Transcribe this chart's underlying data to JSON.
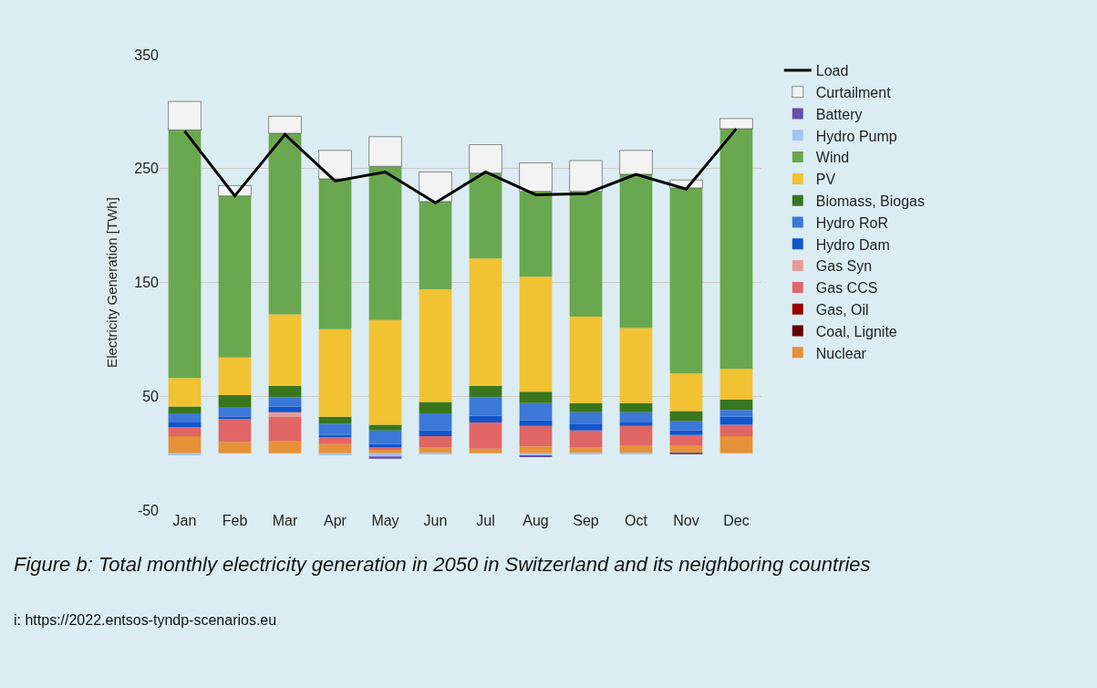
{
  "chart_data": {
    "type": "bar",
    "stacked": true,
    "ylabel": "Electricity Generation [TWh]",
    "categories": [
      "Jan",
      "Feb",
      "Mar",
      "Apr",
      "May",
      "Jun",
      "Jul",
      "Aug",
      "Sep",
      "Oct",
      "Nov",
      "Dec"
    ],
    "series": [
      {
        "name": "Nuclear",
        "color": "#e69138",
        "values": [
          15,
          10,
          11,
          8,
          3,
          5,
          4,
          6,
          5,
          7,
          7,
          15
        ]
      },
      {
        "name": "Coal, Lignite",
        "color": "#660000",
        "values": [
          0,
          0,
          0,
          0,
          0,
          0,
          0,
          0,
          0,
          0,
          0,
          0
        ]
      },
      {
        "name": "Gas, Oil",
        "color": "#990000",
        "values": [
          0,
          0,
          0,
          0,
          0,
          0,
          0,
          0,
          0,
          0,
          0,
          0
        ]
      },
      {
        "name": "Gas CCS",
        "color": "#e06666",
        "values": [
          8,
          20,
          21,
          6,
          2,
          10,
          23,
          18,
          15,
          17,
          9,
          10
        ]
      },
      {
        "name": "Gas Syn",
        "color": "#ea9999",
        "values": [
          0,
          0,
          4,
          0,
          0,
          0,
          0,
          0,
          0,
          0,
          0,
          0
        ]
      },
      {
        "name": "Hydro Dam",
        "color": "#1155cc",
        "values": [
          4,
          2,
          5,
          2,
          3,
          5,
          6,
          5,
          6,
          3,
          4,
          7
        ]
      },
      {
        "name": "Hydro RoR",
        "color": "#3c78d8",
        "values": [
          8,
          8,
          8,
          10,
          12,
          15,
          16,
          15,
          10,
          9,
          8,
          6
        ]
      },
      {
        "name": "Biomass, Biogas",
        "color": "#38761d",
        "values": [
          6,
          11,
          10,
          6,
          5,
          10,
          10,
          10,
          8,
          8,
          9,
          9
        ]
      },
      {
        "name": "PV",
        "color": "#f1c232",
        "values": [
          25,
          33,
          63,
          77,
          92,
          99,
          112,
          101,
          76,
          66,
          33,
          27
        ]
      },
      {
        "name": "Wind",
        "color": "#6aa84f",
        "values": [
          218,
          142,
          159,
          132,
          135,
          77,
          75,
          75,
          110,
          135,
          163,
          211
        ]
      },
      {
        "name": "Hydro Pump",
        "color": "#a4c2f4",
        "values": [
          -2,
          0,
          0,
          -2,
          -3,
          -1,
          0,
          -2,
          -1,
          -1,
          0,
          0
        ]
      },
      {
        "name": "Battery",
        "color": "#674ea7",
        "values": [
          0,
          0,
          0,
          0,
          -2,
          0,
          0,
          -1,
          0,
          0,
          -1,
          0
        ]
      },
      {
        "name": "Curtailment",
        "color": "#f3f3f3",
        "values": [
          25,
          9,
          15,
          25,
          26,
          26,
          25,
          25,
          27,
          21,
          7,
          9
        ]
      },
      {
        "name": "Load",
        "type": "line",
        "color": "#000000",
        "values": [
          283,
          226,
          280,
          239,
          247,
          220,
          247,
          227,
          228,
          245,
          232,
          285
        ]
      }
    ],
    "ylim": [
      -50,
      350
    ],
    "yticks": [
      -50,
      50,
      150,
      250,
      350
    ],
    "grid": "y",
    "legend": "right",
    "annotations": [
      "Figure b: Total monthly electricity generation in 2050 in Switzerland and its neighboring countries",
      "i: https://2022.entsos-tyndp-scenarios.eu"
    ]
  }
}
